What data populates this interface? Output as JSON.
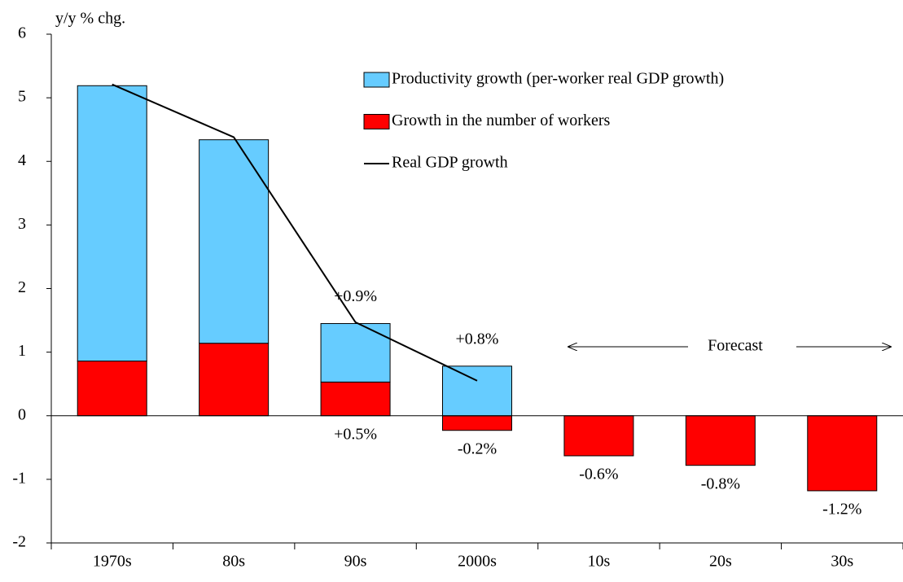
{
  "chart_data": {
    "type": "bar",
    "stacked": true,
    "y_label": "y/y % chg.",
    "categories": [
      "1970s",
      "80s",
      "90s",
      "2000s",
      "10s",
      "20s",
      "30s"
    ],
    "series": [
      {
        "name": "Growth in the number of workers",
        "color": "#ff0000",
        "values": [
          0.86,
          1.14,
          0.53,
          -0.23,
          -0.63,
          -0.78,
          -1.18
        ],
        "value_labels": [
          null,
          null,
          "+0.5%",
          "-0.2%",
          "-0.6%",
          "-0.8%",
          "-1.2%"
        ]
      },
      {
        "name": "Productivity growth (per-worker real GDP growth)",
        "color": "#66ccff",
        "values": [
          4.33,
          3.2,
          0.92,
          0.78,
          null,
          null,
          null
        ],
        "value_labels": [
          null,
          null,
          "+0.9%",
          "+0.8%",
          null,
          null,
          null
        ]
      },
      {
        "name": "Real GDP growth",
        "type": "line",
        "color": "#000000",
        "values": [
          5.21,
          4.38,
          1.47,
          0.55,
          null,
          null,
          null
        ]
      }
    ],
    "annotation": "Forecast",
    "ylim": [
      -2,
      6
    ],
    "yticks": [
      -2,
      -1,
      0,
      1,
      2,
      3,
      4,
      5,
      6
    ]
  }
}
